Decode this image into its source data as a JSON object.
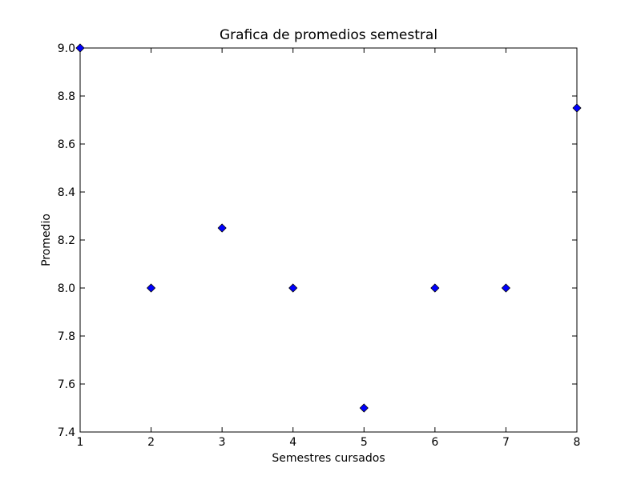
{
  "chart_data": {
    "type": "scatter",
    "title": "Grafica de promedios semestral",
    "xlabel": "Semestres cursados",
    "ylabel": "Promedio",
    "xlim": [
      1,
      8
    ],
    "ylim": [
      7.4,
      9.0
    ],
    "xticks": [
      "1",
      "2",
      "3",
      "4",
      "5",
      "6",
      "7",
      "8"
    ],
    "yticks": [
      "7.4",
      "7.6",
      "7.8",
      "8.0",
      "8.2",
      "8.4",
      "8.6",
      "8.8",
      "9.0"
    ],
    "grid": false,
    "legend": "none",
    "marker": "diamond",
    "marker_color": "#0000ff",
    "series": [
      {
        "x": [
          1,
          2,
          3,
          4,
          5,
          6,
          7,
          8
        ],
        "y": [
          9.0,
          8.0,
          8.25,
          8.0,
          7.5,
          8.0,
          8.0,
          8.75
        ]
      }
    ]
  }
}
